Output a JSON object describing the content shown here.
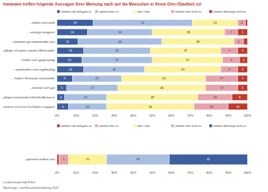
{
  "chart_data": [
    {
      "type": "bar",
      "title": "Inwieweit treffen folgende Aussagen Ihrer Meinung nach auf die Menschen in Ihrem Orts-/Stadtteil zu!",
      "orientation": "horizontal",
      "stacked": true,
      "data_labels": true,
      "grid": true,
      "legend": "top",
      "categories": [
        "...fühlen sich wohl",
        "...sind gut integriert",
        "...kommen gut miteinander aus",
        "...pflegen ein gutes soziales Miteinander",
        "...helfen sich gegenseitig",
        "...unterhalten sich regelmäßig",
        "...haben Vertrauen zueinander",
        "...kennen sich gut",
        "...pflegen untereinander kulturellen Austausch",
        "...sind bereit, sich für ihren Orts-/Stadtteil zu engagieren"
      ],
      "series": [
        {
          "name": "stimme voll und ganz zu",
          "color": "#3d5f9f",
          "values": [
            19,
            16,
            11,
            14,
            13,
            14,
            8,
            5,
            4,
            6
          ]
        },
        {
          "name": "stimme eher zu",
          "color": "#a9bfe1",
          "values": [
            52,
            34,
            44,
            35,
            37,
            32,
            26,
            27,
            22,
            20
          ]
        },
        {
          "name": "teils / teils",
          "color": "#fbf39b",
          "values": [
            24,
            38,
            38,
            37,
            37,
            40,
            44,
            46,
            48,
            46
          ]
        },
        {
          "name": "stimme eher nicht zu",
          "color": "#e6a3ab",
          "values": [
            4,
            7,
            5,
            9,
            9,
            9,
            17,
            17,
            18,
            18
          ]
        },
        {
          "name": "stimme überhaupt nicht zu",
          "color": "#c0392b",
          "values": [
            1,
            5,
            2,
            5,
            4,
            5,
            5,
            5,
            8,
            10
          ]
        }
      ],
      "xlim": [
        0,
        100
      ],
      "xticks": [
        {
          "value": 0,
          "label": "0%"
        },
        {
          "value": 10,
          "label": "10%"
        },
        {
          "value": 20,
          "label": "20%"
        },
        {
          "value": 30,
          "label": "30%"
        },
        {
          "value": 40,
          "label": "40%"
        },
        {
          "value": 50,
          "label": "50%"
        },
        {
          "value": 60,
          "label": "60%"
        },
        {
          "value": 70,
          "label": "70%"
        },
        {
          "value": 80,
          "label": "80%"
        },
        {
          "value": 90,
          "label": "90%"
        },
        {
          "value": 100,
          "label": "100%"
        }
      ]
    },
    {
      "type": "bar",
      "orientation": "horizontal",
      "stacked": true,
      "data_labels": true,
      "grid": true,
      "legend": "top",
      "categories": [
        "...grenzen andere aus"
      ],
      "series": [
        {
          "name": "stimme voll und ganz zu",
          "color": "#c0392b",
          "values": [
            1
          ]
        },
        {
          "name": "stimme eher zu",
          "color": "#e6a3ab",
          "values": [
            5
          ]
        },
        {
          "name": "teils / teils",
          "color": "#fbf39b",
          "values": [
            20
          ]
        },
        {
          "name": "stimme eher nicht zu",
          "color": "#a9bfe1",
          "values": [
            33
          ]
        },
        {
          "name": "stimme überhaupt nicht zu",
          "color": "#3d5f9f",
          "values": [
            41
          ]
        }
      ],
      "xlim": [
        0,
        100
      ],
      "xticks": [
        {
          "value": 0,
          "label": "0%"
        },
        {
          "value": 10,
          "label": "10%"
        },
        {
          "value": 20,
          "label": "20%"
        },
        {
          "value": 30,
          "label": "30%"
        },
        {
          "value": 40,
          "label": "40%"
        },
        {
          "value": 50,
          "label": "50%"
        },
        {
          "value": 60,
          "label": "60%"
        },
        {
          "value": 70,
          "label": "70%"
        },
        {
          "value": 80,
          "label": "80%"
        },
        {
          "value": 90,
          "label": "90%"
        },
        {
          "value": 100,
          "label": "100%"
        }
      ],
      "annotations": [
        "Landeshauptstadt Erfurt",
        "Wohnungs- und Haushaltserhebung 2022"
      ]
    }
  ]
}
